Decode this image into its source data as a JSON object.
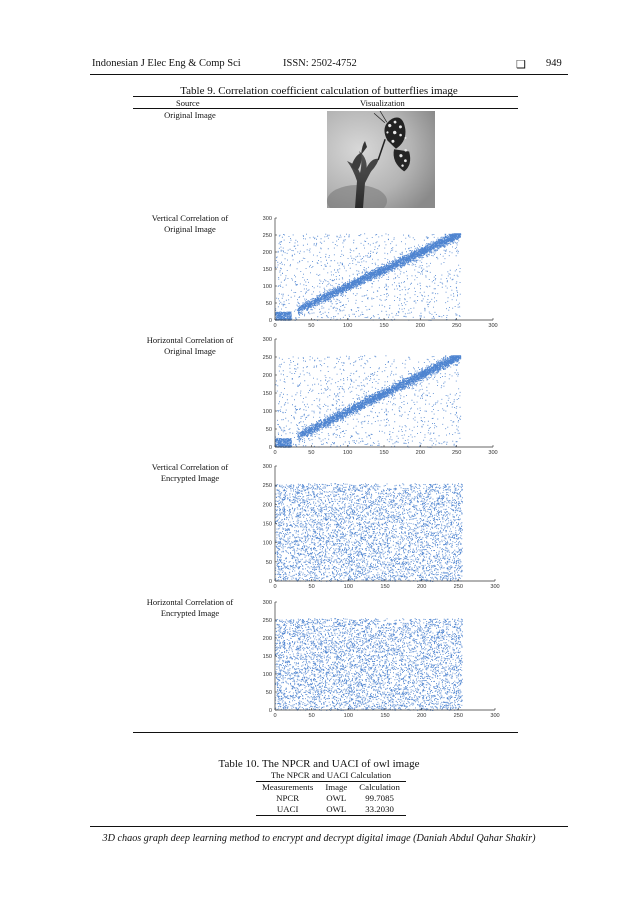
{
  "header": {
    "journal": "Indonesian J Elec Eng & Comp Sci",
    "issn": "ISSN: 2502-4752",
    "box_glyph": "❑",
    "page": "949"
  },
  "table9": {
    "caption": "Table 9. Correlation coefficient calculation of butterflies image",
    "col_source": "Source",
    "col_visualization": "Visualization",
    "rows": [
      {
        "label_line1": "Original Image",
        "label_line2": ""
      },
      {
        "label_line1": "Vertical Correlation of",
        "label_line2": "Original Image"
      },
      {
        "label_line1": "Horizontal Correlation of",
        "label_line2": "Original Image"
      },
      {
        "label_line1": "Vertical Correlation of",
        "label_line2": "Encrypted Image"
      },
      {
        "label_line1": "Horizontal Correlation of",
        "label_line2": "Encrypted Image"
      }
    ]
  },
  "chart_data": [
    {
      "type": "scatter",
      "distribution": "correlated",
      "color": "#2f6fc8",
      "xlim": [
        0,
        300
      ],
      "ylim": [
        0,
        300
      ],
      "xticks": [
        "0",
        "50",
        "100",
        "150",
        "200",
        "250",
        "300"
      ],
      "yticks": [
        "0",
        "50",
        "100",
        "150",
        "200",
        "250",
        "300"
      ]
    },
    {
      "type": "scatter",
      "distribution": "correlated",
      "color": "#2f6fc8",
      "xlim": [
        0,
        300
      ],
      "ylim": [
        0,
        300
      ],
      "xticks": [
        "0",
        "50",
        "100",
        "150",
        "200",
        "250",
        "300"
      ],
      "yticks": [
        "0",
        "50",
        "100",
        "150",
        "200",
        "250",
        "300"
      ]
    },
    {
      "type": "scatter",
      "distribution": "uniform",
      "color": "#2f6fc8",
      "xlim": [
        0,
        300
      ],
      "ylim": [
        0,
        300
      ],
      "xticks": [
        "0",
        "50",
        "100",
        "150",
        "200",
        "250",
        "300"
      ],
      "yticks": [
        "0",
        "50",
        "100",
        "150",
        "200",
        "250",
        "300"
      ]
    },
    {
      "type": "scatter",
      "distribution": "uniform",
      "color": "#2f6fc8",
      "xlim": [
        0,
        300
      ],
      "ylim": [
        0,
        300
      ],
      "xticks": [
        "0",
        "50",
        "100",
        "150",
        "200",
        "250",
        "300"
      ],
      "yticks": [
        "0",
        "50",
        "100",
        "150",
        "200",
        "250",
        "300"
      ]
    }
  ],
  "table10": {
    "caption": "Table 10. The NPCR and UACI of owl image",
    "subheader": "The NPCR and UACI Calculation",
    "columns": [
      "Measurements",
      "Image",
      "Calculation"
    ],
    "rows": [
      [
        "NPCR",
        "OWL",
        "99.7085"
      ],
      [
        "UACI",
        "OWL",
        "33.2030"
      ]
    ]
  },
  "footer": "3D chaos graph deep learning method to encrypt and decrypt digital image (Daniah Abdul Qahar Shakir)"
}
